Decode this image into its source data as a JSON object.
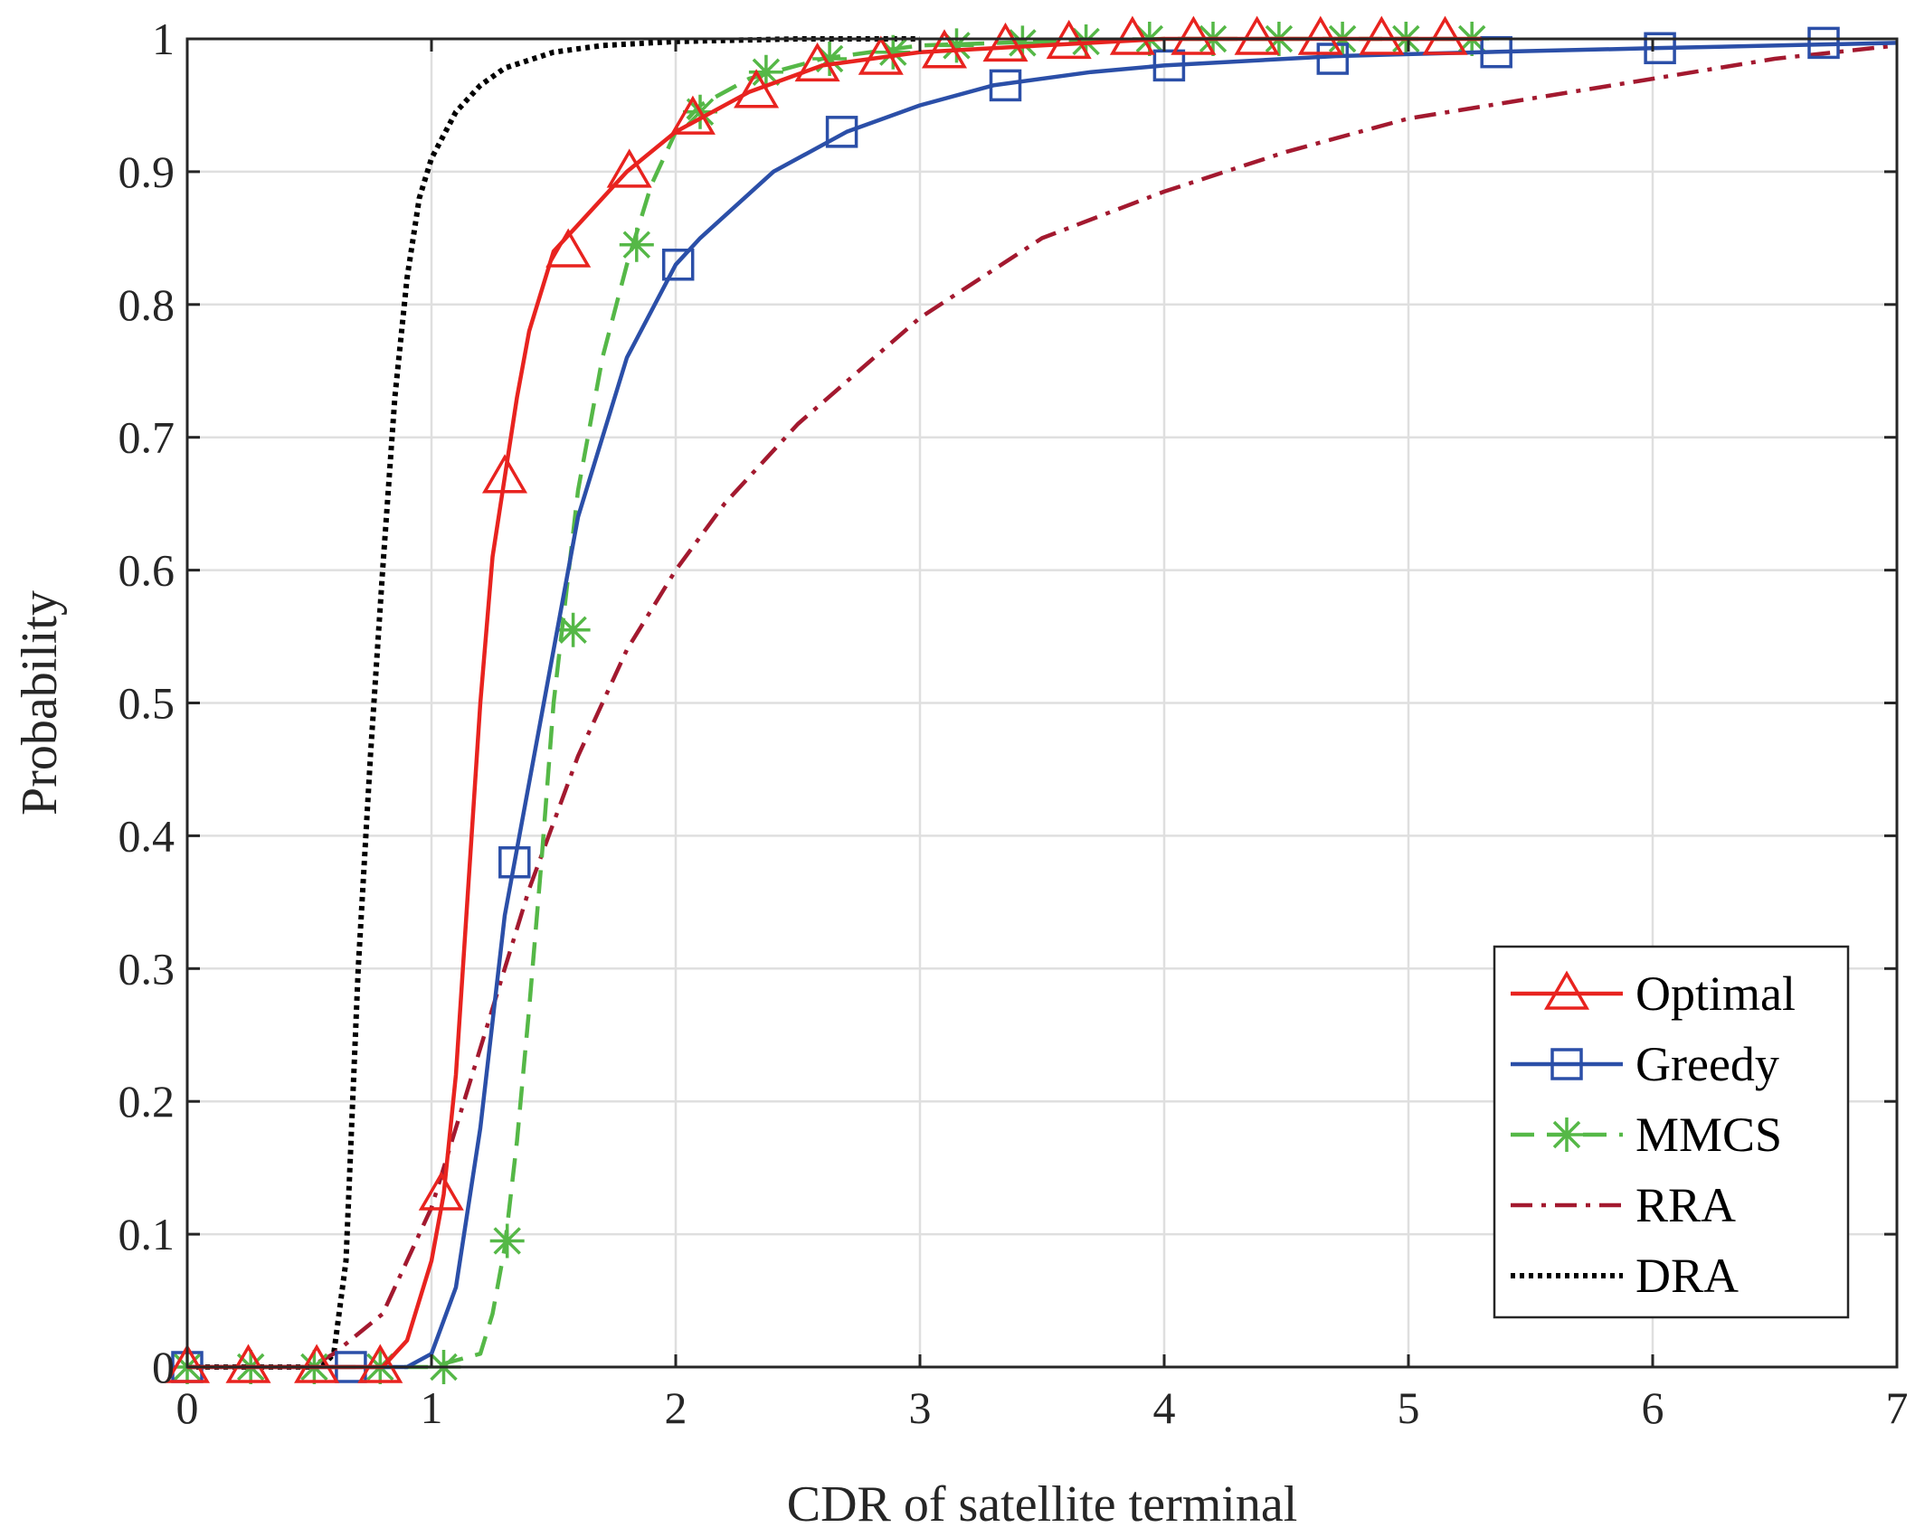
{
  "chart_data": {
    "type": "line",
    "title": "",
    "xlabel": "CDR of satellite terminal",
    "ylabel": "Probability",
    "xlim": [
      0,
      7
    ],
    "ylim": [
      0,
      1
    ],
    "xticks": [
      0,
      1,
      2,
      3,
      4,
      5,
      6,
      7
    ],
    "xtick_labels": [
      "0",
      "1",
      "2",
      "3",
      "4",
      "5",
      "6",
      "7"
    ],
    "yticks": [
      0,
      0.1,
      0.2,
      0.3,
      0.4,
      0.5,
      0.6,
      0.7,
      0.8,
      0.9,
      1
    ],
    "ytick_labels": [
      "0",
      "0.1",
      "0.2",
      "0.3",
      "0.4",
      "0.5",
      "0.6",
      "0.7",
      "0.8",
      "0.9",
      "1"
    ],
    "grid": true,
    "legend_position": "bottom-right",
    "series": [
      {
        "name": "Optimal",
        "color": "#e8231f",
        "line_style": "solid",
        "marker": "triangle",
        "x": [
          0,
          0.5,
          0.8,
          0.9,
          1.0,
          1.05,
          1.1,
          1.15,
          1.2,
          1.25,
          1.3,
          1.35,
          1.4,
          1.5,
          1.6,
          1.8,
          2.0,
          2.3,
          2.6,
          3.0,
          3.5,
          4.0,
          5.0,
          5.3
        ],
        "y": [
          0,
          0,
          0,
          0.02,
          0.08,
          0.13,
          0.22,
          0.36,
          0.5,
          0.61,
          0.67,
          0.73,
          0.78,
          0.84,
          0.86,
          0.9,
          0.93,
          0.96,
          0.98,
          0.99,
          0.995,
          1.0,
          1.0,
          1.0
        ],
        "marker_x": [
          0,
          0.25,
          0.53,
          0.79,
          1.04,
          1.3,
          1.56,
          1.81,
          2.07,
          2.33,
          2.58,
          2.84,
          3.1,
          3.35,
          3.61,
          3.87,
          4.12,
          4.38,
          4.64,
          4.89,
          5.15
        ],
        "marker_y": [
          0,
          0,
          0,
          0,
          0.13,
          0.67,
          0.84,
          0.9,
          0.94,
          0.96,
          0.98,
          0.985,
          0.99,
          0.995,
          0.997,
          1.0,
          1.0,
          1.0,
          1.0,
          1.0,
          1.0
        ]
      },
      {
        "name": "Greedy",
        "color": "#2b4fa8",
        "line_style": "solid",
        "marker": "square",
        "x": [
          0,
          0.6,
          0.9,
          1.0,
          1.1,
          1.2,
          1.3,
          1.4,
          1.5,
          1.6,
          1.8,
          2.0,
          2.1,
          2.4,
          2.7,
          3.0,
          3.3,
          3.7,
          4.0,
          4.7,
          5.3,
          6.0,
          7.0
        ],
        "y": [
          0,
          0,
          0,
          0.01,
          0.06,
          0.18,
          0.34,
          0.44,
          0.54,
          0.64,
          0.76,
          0.83,
          0.85,
          0.9,
          0.93,
          0.95,
          0.965,
          0.975,
          0.98,
          0.987,
          0.99,
          0.993,
          0.997
        ],
        "marker_x": [
          0,
          0.67,
          1.34,
          2.01,
          2.68,
          3.35,
          4.02,
          4.69,
          5.36,
          6.03,
          6.7
        ],
        "marker_y": [
          0,
          0,
          0.38,
          0.83,
          0.93,
          0.965,
          0.98,
          0.985,
          0.99,
          0.993,
          0.997
        ]
      },
      {
        "name": "MMCS",
        "color": "#55b847",
        "line_style": "dashed",
        "marker": "star",
        "x": [
          0,
          1.0,
          1.2,
          1.25,
          1.3,
          1.35,
          1.4,
          1.45,
          1.5,
          1.55,
          1.6,
          1.7,
          1.8,
          1.9,
          2.0,
          2.1,
          2.3,
          2.6,
          3.0,
          3.5,
          4.0,
          5.3
        ],
        "y": [
          0,
          0,
          0.01,
          0.04,
          0.09,
          0.17,
          0.27,
          0.38,
          0.5,
          0.58,
          0.66,
          0.76,
          0.83,
          0.89,
          0.93,
          0.95,
          0.97,
          0.985,
          0.995,
          0.998,
          1.0,
          1.0
        ],
        "marker_x": [
          0,
          0.26,
          0.52,
          0.79,
          1.05,
          1.31,
          1.58,
          1.84,
          2.1,
          2.37,
          2.63,
          2.89,
          3.15,
          3.42,
          3.68,
          3.94,
          4.2,
          4.47,
          4.73,
          4.99,
          5.26
        ],
        "marker_y": [
          0,
          0,
          0,
          0,
          0,
          0.095,
          0.555,
          0.845,
          0.945,
          0.975,
          0.985,
          0.99,
          0.995,
          0.997,
          0.998,
          1.0,
          1.0,
          1.0,
          1.0,
          1.0,
          1.0
        ]
      },
      {
        "name": "RRA",
        "color": "#a3192f",
        "line_style": "dashdot",
        "marker": "none",
        "x": [
          0,
          0.5,
          0.6,
          0.8,
          1.0,
          1.2,
          1.4,
          1.6,
          1.8,
          2.0,
          2.2,
          2.5,
          3.0,
          3.5,
          4.0,
          4.5,
          5.0,
          5.5,
          6.0,
          6.5,
          7.0
        ],
        "y": [
          0,
          0,
          0.01,
          0.04,
          0.12,
          0.24,
          0.36,
          0.46,
          0.54,
          0.6,
          0.65,
          0.71,
          0.79,
          0.85,
          0.885,
          0.915,
          0.94,
          0.955,
          0.97,
          0.985,
          0.995
        ]
      },
      {
        "name": "DRA",
        "color": "#000000",
        "line_style": "dotted",
        "marker": "none",
        "x": [
          0,
          0.55,
          0.6,
          0.65,
          0.7,
          0.75,
          0.8,
          0.85,
          0.9,
          0.95,
          1.0,
          1.1,
          1.2,
          1.3,
          1.5,
          1.7,
          2.0,
          2.5,
          3.0
        ],
        "y": [
          0,
          0,
          0.01,
          0.08,
          0.3,
          0.46,
          0.6,
          0.73,
          0.82,
          0.88,
          0.91,
          0.945,
          0.965,
          0.978,
          0.99,
          0.995,
          0.998,
          1.0,
          1.0
        ]
      }
    ]
  }
}
